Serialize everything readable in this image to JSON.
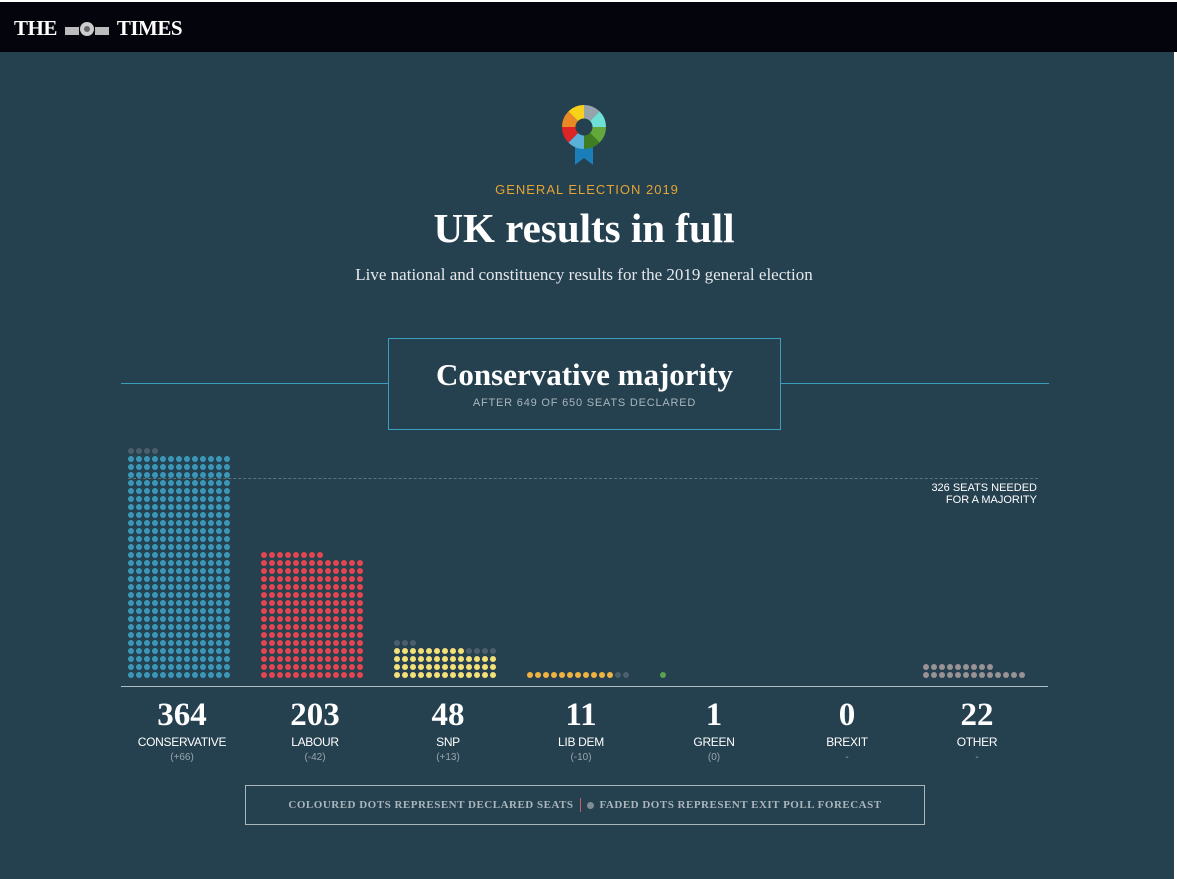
{
  "header": {
    "logo": "THE TIMES",
    "logo_left": "THE",
    "logo_right": "TIMES"
  },
  "page": {
    "kicker": "GENERAL ELECTION 2019",
    "title": "UK results in full",
    "subtitle": "Live national and constituency results for the 2019 general election"
  },
  "result": {
    "headline": "Conservative majority",
    "status": "AFTER 649 OF 650 SEATS DECLARED"
  },
  "majority": {
    "line1": "326 SEATS NEEDED",
    "line2": "FOR A MAJORITY"
  },
  "legend": {
    "declared": "COLOURED DOTS REPRESENT DECLARED SEATS",
    "forecast": "FADED DOTS REPRESENT EXIT POLL FORECAST"
  },
  "colors": {
    "background": "#25404f",
    "faded": "#4b606c",
    "kicker": "#e4a533"
  },
  "chart_data": {
    "type": "dot-bar",
    "title": "Conservative majority",
    "majority_threshold": 326,
    "dots_per_row": 13,
    "parties": [
      {
        "name": "CONSERVATIVE",
        "seats": "364",
        "declared": 364,
        "forecast_extra": 4,
        "change": "(+66)",
        "color": "#3a97b8"
      },
      {
        "name": "LABOUR",
        "seats": "203",
        "declared": 203,
        "forecast_extra": 0,
        "change": "(-42)",
        "color": "#e5454f"
      },
      {
        "name": "SNP",
        "seats": "48",
        "declared": 48,
        "forecast_extra": 7,
        "change": "(+13)",
        "color": "#f5e07a"
      },
      {
        "name": "LIB DEM",
        "seats": "11",
        "declared": 11,
        "forecast_extra": 2,
        "change": "(-10)",
        "color": "#f0b341"
      },
      {
        "name": "GREEN",
        "seats": "1",
        "declared": 1,
        "forecast_extra": 0,
        "change": "(0)",
        "color": "#5aa04e"
      },
      {
        "name": "BREXIT",
        "seats": "0",
        "declared": 0,
        "forecast_extra": 0,
        "change": "-",
        "color": "#5ab0c8"
      },
      {
        "name": "OTHER",
        "seats": "22",
        "declared": 22,
        "forecast_extra": 0,
        "change": "-",
        "color": "#9a9195"
      }
    ]
  }
}
